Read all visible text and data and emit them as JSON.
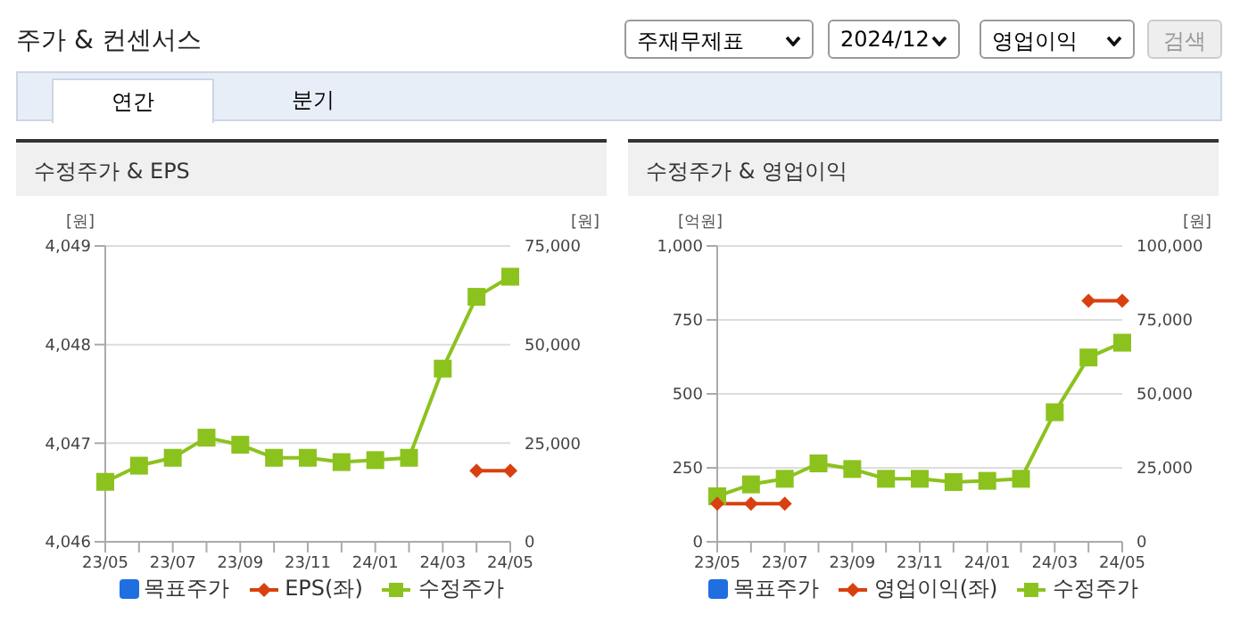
{
  "chart_data": [
    {
      "type": "other",
      "title": "주가 & 컨센서스",
      "annotations": [
        "주재무제표",
        "2024/12",
        "영업이익",
        "검색",
        "연간",
        "분기"
      ]
    },
    {
      "type": "line",
      "title": "수정주가 & EPS",
      "ylabel": "[원]",
      "y2label": "[원]",
      "categories": [
        "23/05",
        null,
        "23/07",
        null,
        "23/09",
        null,
        "23/11",
        null,
        "24/01",
        null,
        "24/03",
        null,
        "24/05"
      ],
      "series": [
        {
          "name": "목표주가",
          "color": "#1f6fe0",
          "marker": "square",
          "values": [
            null,
            null,
            null,
            null,
            null,
            null,
            null,
            null,
            null,
            null,
            null,
            null,
            null
          ]
        },
        {
          "name": "EPS(좌)",
          "color": "#d9400f",
          "marker": "diamond",
          "values": [
            null,
            null,
            null,
            null,
            null,
            null,
            null,
            null,
            null,
            null,
            null,
            4046.72,
            4046.72
          ]
        },
        {
          "name": "수정주가",
          "color": "#8cc21e",
          "marker": "square",
          "axis": "y2",
          "values": [
            15200,
            19300,
            21300,
            26400,
            24600,
            21300,
            21300,
            20200,
            20700,
            21300,
            43900,
            62100,
            67200
          ]
        }
      ],
      "ylim": [
        4046,
        4049
      ],
      "yticks": [
        {
          "value": 4046,
          "label": "4,046"
        },
        {
          "value": 4047,
          "label": "4,047"
        },
        {
          "value": 4048,
          "label": "4,048"
        },
        {
          "value": 4049,
          "label": "4,049"
        }
      ],
      "y2lim": [
        0,
        75000
      ],
      "y2ticks": [
        0,
        {
          "value": 25000,
          "label": "25,000"
        },
        {
          "value": 50000,
          "label": "50,000"
        },
        {
          "value": 75000,
          "label": "75,000"
        }
      ],
      "grid": "y",
      "legend": "bottom",
      "line_style": "solid"
    },
    {
      "type": "line",
      "title": "수정주가 & 영업이익",
      "ylabel": "[억원]",
      "y2label": "[원]",
      "categories": [
        "23/05",
        null,
        "23/07",
        null,
        "23/09",
        null,
        "23/11",
        null,
        "24/01",
        null,
        "24/03",
        null,
        "24/05"
      ],
      "series": [
        {
          "name": "목표주가",
          "color": "#1f6fe0",
          "marker": "square",
          "values": [
            null,
            null,
            null,
            null,
            null,
            null,
            null,
            null,
            null,
            null,
            null,
            null,
            null
          ]
        },
        {
          "name": "영업이익(좌)",
          "color": "#d9400f",
          "marker": "diamond",
          "values": [
            129,
            129,
            129,
            null,
            null,
            null,
            null,
            null,
            null,
            null,
            null,
            815,
            815
          ]
        },
        {
          "name": "수정주가",
          "color": "#8cc21e",
          "marker": "square",
          "axis": "y2",
          "values": [
            15400,
            19400,
            21300,
            26500,
            24600,
            21300,
            21300,
            20200,
            20600,
            21300,
            43800,
            62300,
            67300
          ]
        }
      ],
      "ylim": [
        0,
        1000
      ],
      "yticks": [
        0,
        250,
        500,
        750,
        {
          "value": 1000,
          "label": "1,000"
        }
      ],
      "y2lim": [
        0,
        100000
      ],
      "y2ticks": [
        0,
        {
          "value": 25000,
          "label": "25,000"
        },
        {
          "value": 50000,
          "label": "50,000"
        },
        {
          "value": 75000,
          "label": "75,000"
        },
        {
          "value": 100000,
          "label": "100,000"
        }
      ],
      "grid": "y",
      "legend": "bottom",
      "line_style": "solid"
    }
  ]
}
